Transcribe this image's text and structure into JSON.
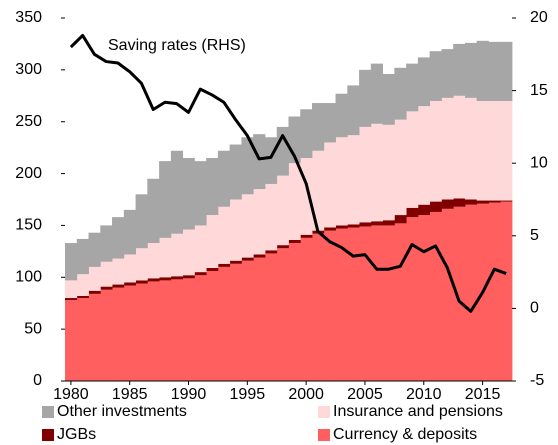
{
  "chart_data": {
    "type": "stacked-bar-line",
    "annotation": "Saving rates (RHS)",
    "x": [
      1980,
      1981,
      1982,
      1983,
      1984,
      1985,
      1986,
      1987,
      1988,
      1989,
      1990,
      1991,
      1992,
      1993,
      1994,
      1995,
      1996,
      1997,
      1998,
      1999,
      2000,
      2001,
      2002,
      2003,
      2004,
      2005,
      2006,
      2007,
      2008,
      2009,
      2010,
      2011,
      2012,
      2013,
      2014,
      2015,
      2016,
      2017
    ],
    "xlim": [
      1979.5,
      2017.5
    ],
    "xticks": [
      1980,
      1985,
      1990,
      1995,
      2000,
      2005,
      2010,
      2015
    ],
    "ylim": [
      0,
      350
    ],
    "yticks": [
      0,
      50,
      100,
      150,
      200,
      250,
      300,
      350
    ],
    "y2lim": [
      -5,
      20
    ],
    "y2ticks": [
      -5,
      0,
      5,
      10,
      15,
      20
    ],
    "series": [
      {
        "name": "Currency & deposits",
        "color": "#ff5f5f",
        "values": [
          78,
          80,
          84,
          88,
          90,
          92,
          94,
          96,
          97,
          98,
          99,
          102,
          106,
          110,
          113,
          116,
          119,
          123,
          128,
          133,
          138,
          142,
          145,
          147,
          148,
          149,
          150,
          150,
          152,
          158,
          160,
          163,
          166,
          168,
          170,
          171,
          172,
          173
        ]
      },
      {
        "name": "JGBs",
        "color": "#800000",
        "values": [
          2,
          2,
          3,
          3,
          3,
          3,
          3,
          3,
          3,
          3,
          3,
          3,
          3,
          3,
          3,
          3,
          3,
          3,
          3,
          3,
          3,
          3,
          3,
          3,
          3,
          4,
          4,
          5,
          8,
          9,
          10,
          10,
          9,
          8,
          5,
          3,
          2,
          1
        ]
      },
      {
        "name": "Insurance and pensions",
        "color": "#ffd9d9",
        "values": [
          17,
          21,
          23,
          24,
          25,
          27,
          31,
          34,
          38,
          41,
          44,
          45,
          51,
          55,
          59,
          61,
          63,
          64,
          67,
          74,
          74,
          77,
          82,
          85,
          86,
          92,
          94,
          92,
          92,
          93,
          95,
          97,
          98,
          99,
          98,
          96,
          96,
          96
        ]
      },
      {
        "name": "Other investments",
        "color": "#a6a6a6",
        "values": [
          36,
          34,
          33,
          35,
          40,
          43,
          52,
          62,
          74,
          80,
          69,
          62,
          55,
          54,
          53,
          55,
          53,
          45,
          47,
          45,
          47,
          46,
          38,
          42,
          48,
          55,
          58,
          49,
          50,
          46,
          47,
          48,
          47,
          50,
          53,
          58,
          57,
          57
        ]
      },
      {
        "name": "Saving rates",
        "color": "#000000",
        "axis": "y2",
        "values": [
          18,
          18.8,
          17.5,
          17,
          16.9,
          16.3,
          15.5,
          13.7,
          14.2,
          14.1,
          13.5,
          15.1,
          14.7,
          14.2,
          13,
          11.9,
          10.3,
          10.4,
          11.9,
          10.5,
          8.6,
          5.3,
          4.6,
          4.2,
          3.6,
          3.7,
          2.7,
          2.7,
          2.9,
          4.4,
          3.9,
          4.3,
          2.8,
          0.5,
          -0.2,
          1.1,
          2.7,
          2.4
        ]
      }
    ]
  }
}
